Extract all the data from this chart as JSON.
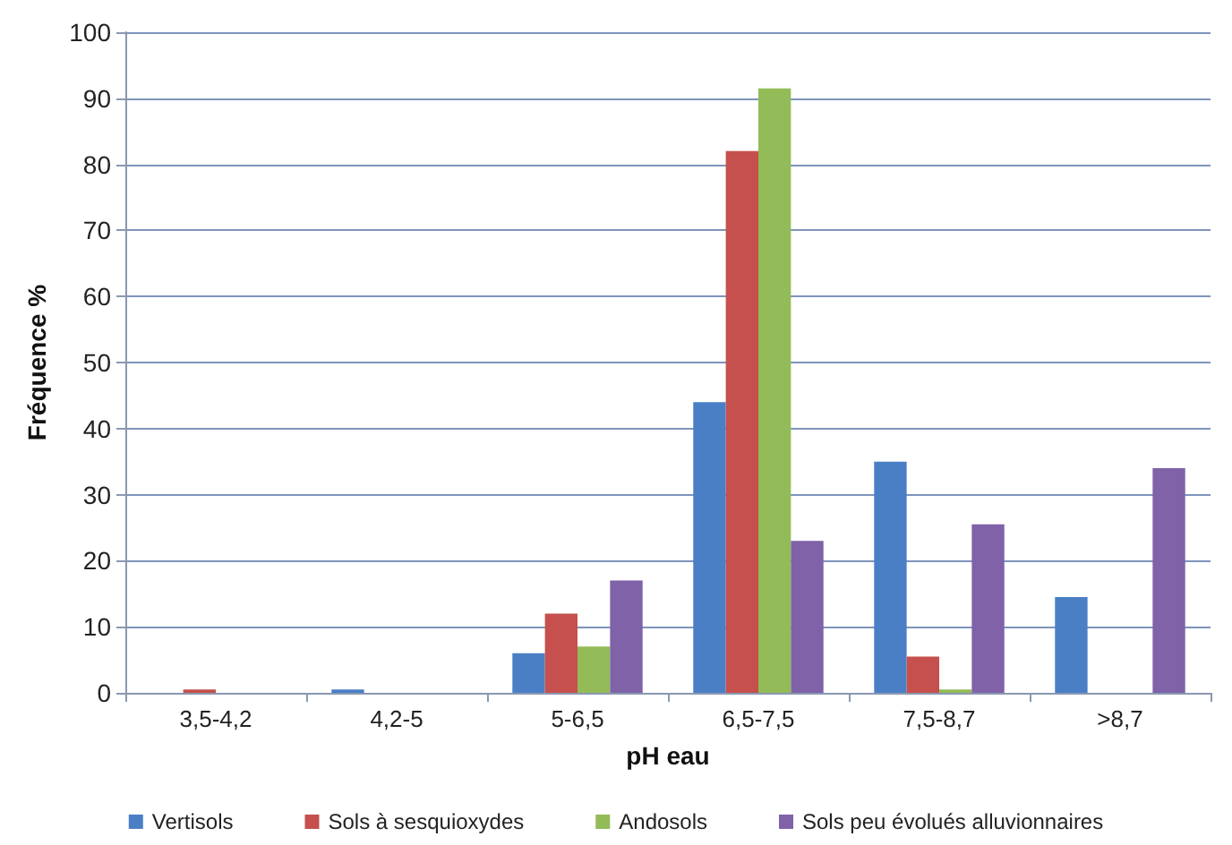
{
  "chart_data": {
    "type": "bar",
    "xlabel": "pH eau",
    "ylabel": "Fréquence %",
    "categories": [
      "3,5-4,2",
      "4,2-5",
      "5-6,5",
      "6,5-7,5",
      "7,5-8,7",
      ">8,7"
    ],
    "series": [
      {
        "name": "Vertisols",
        "color": "#4a7fc6",
        "values": [
          0,
          0.5,
          6,
          44,
          35,
          14.5
        ]
      },
      {
        "name": "Sols à sesquioxydes",
        "color": "#c5504d",
        "values": [
          0.5,
          0,
          12,
          82,
          5.5,
          0
        ]
      },
      {
        "name": "Andosols",
        "color": "#93bb58",
        "values": [
          0,
          0,
          7,
          91.5,
          0.5,
          0
        ]
      },
      {
        "name": "Sols peu évolués alluvionnaires",
        "color": "#7f62a8",
        "values": [
          0,
          0,
          17,
          23,
          25.5,
          34
        ]
      }
    ],
    "ylim": [
      0,
      100
    ],
    "yticks": [
      0,
      10,
      20,
      30,
      40,
      50,
      60,
      70,
      80,
      90,
      100
    ],
    "grid": "y",
    "legend": "bottom"
  }
}
